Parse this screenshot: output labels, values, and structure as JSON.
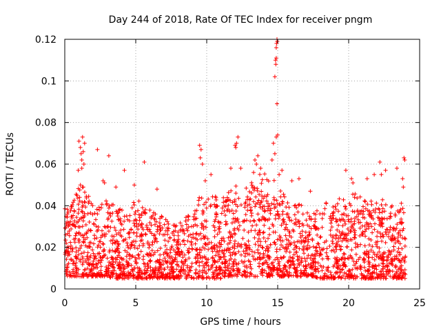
{
  "chart_data": {
    "type": "scatter",
    "title": "Day 244 of 2018, Rate Of TEC Index for receiver pngm",
    "xlabel": "GPS time / hours",
    "ylabel": "ROTI / TECUs",
    "xlim": [
      0,
      25
    ],
    "ylim": [
      0,
      0.12
    ],
    "x_ticks": [
      0,
      5,
      10,
      15,
      20,
      25
    ],
    "x_tick_labels": [
      "0",
      "5",
      "10",
      "15",
      "20",
      "25"
    ],
    "y_ticks": [
      0,
      0.02,
      0.04,
      0.06,
      0.08,
      0.1,
      0.12
    ],
    "y_tick_labels": [
      "0",
      "0.02",
      "0.04",
      "0.06",
      "0.08",
      "0.1",
      "0.12"
    ],
    "grid": true,
    "marker": "+",
    "series_color": "#ff0000",
    "series": [
      {
        "name": "pngm",
        "envelope": [
          [
            0.0,
            0.006,
            0.045
          ],
          [
            0.5,
            0.006,
            0.04
          ],
          [
            1.0,
            0.006,
            0.05
          ],
          [
            1.5,
            0.006,
            0.048
          ],
          [
            2.0,
            0.006,
            0.04
          ],
          [
            2.5,
            0.006,
            0.042
          ],
          [
            3.0,
            0.006,
            0.045
          ],
          [
            3.5,
            0.005,
            0.04
          ],
          [
            4.0,
            0.005,
            0.038
          ],
          [
            4.5,
            0.005,
            0.036
          ],
          [
            5.0,
            0.005,
            0.045
          ],
          [
            5.5,
            0.005,
            0.04
          ],
          [
            6.0,
            0.005,
            0.038
          ],
          [
            6.5,
            0.005,
            0.036
          ],
          [
            7.0,
            0.005,
            0.035
          ],
          [
            7.5,
            0.005,
            0.032
          ],
          [
            8.0,
            0.005,
            0.032
          ],
          [
            8.5,
            0.005,
            0.035
          ],
          [
            9.0,
            0.005,
            0.038
          ],
          [
            9.5,
            0.005,
            0.045
          ],
          [
            10.0,
            0.005,
            0.045
          ],
          [
            10.5,
            0.005,
            0.046
          ],
          [
            11.0,
            0.005,
            0.044
          ],
          [
            11.5,
            0.006,
            0.046
          ],
          [
            12.0,
            0.006,
            0.05
          ],
          [
            12.5,
            0.006,
            0.052
          ],
          [
            13.0,
            0.006,
            0.05
          ],
          [
            13.5,
            0.006,
            0.055
          ],
          [
            14.0,
            0.006,
            0.056
          ],
          [
            14.5,
            0.006,
            0.055
          ],
          [
            15.0,
            0.006,
            0.05
          ],
          [
            15.5,
            0.006,
            0.045
          ],
          [
            16.0,
            0.006,
            0.04
          ],
          [
            16.5,
            0.006,
            0.042
          ],
          [
            17.0,
            0.006,
            0.038
          ],
          [
            17.5,
            0.006,
            0.036
          ],
          [
            18.0,
            0.005,
            0.04
          ],
          [
            18.5,
            0.005,
            0.042
          ],
          [
            19.0,
            0.005,
            0.042
          ],
          [
            19.5,
            0.005,
            0.044
          ],
          [
            20.0,
            0.005,
            0.045
          ],
          [
            20.5,
            0.005,
            0.046
          ],
          [
            21.0,
            0.005,
            0.045
          ],
          [
            21.5,
            0.005,
            0.042
          ],
          [
            22.0,
            0.005,
            0.044
          ],
          [
            22.5,
            0.005,
            0.043
          ],
          [
            23.0,
            0.005,
            0.04
          ],
          [
            23.5,
            0.005,
            0.04
          ],
          [
            24.0,
            0.005,
            0.044
          ]
        ],
        "outliers": [
          [
            1.0,
            0.071
          ],
          [
            1.1,
            0.068
          ],
          [
            1.15,
            0.065
          ],
          [
            1.2,
            0.062
          ],
          [
            1.25,
            0.073
          ],
          [
            1.3,
            0.066
          ],
          [
            1.2,
            0.058
          ],
          [
            1.35,
            0.06
          ],
          [
            1.1,
            0.05
          ],
          [
            1.3,
            0.049
          ],
          [
            1.4,
            0.07
          ],
          [
            0.95,
            0.057
          ],
          [
            2.3,
            0.067
          ],
          [
            2.7,
            0.052
          ],
          [
            2.8,
            0.051
          ],
          [
            3.1,
            0.064
          ],
          [
            3.6,
            0.049
          ],
          [
            4.2,
            0.057
          ],
          [
            4.9,
            0.05
          ],
          [
            5.6,
            0.061
          ],
          [
            6.5,
            0.048
          ],
          [
            9.5,
            0.069
          ],
          [
            9.6,
            0.067
          ],
          [
            9.55,
            0.063
          ],
          [
            9.7,
            0.06
          ],
          [
            9.9,
            0.052
          ],
          [
            10.3,
            0.055
          ],
          [
            11.7,
            0.058
          ],
          [
            12.0,
            0.069
          ],
          [
            12.1,
            0.07
          ],
          [
            12.2,
            0.073
          ],
          [
            12.05,
            0.068
          ],
          [
            12.4,
            0.058
          ],
          [
            13.3,
            0.056
          ],
          [
            13.5,
            0.06
          ],
          [
            13.6,
            0.064
          ],
          [
            13.4,
            0.062
          ],
          [
            13.8,
            0.058
          ],
          [
            14.6,
            0.062
          ],
          [
            14.7,
            0.07
          ],
          [
            14.8,
            0.065
          ],
          [
            14.9,
            0.073
          ],
          [
            15.0,
            0.074
          ],
          [
            15.1,
            0.055
          ],
          [
            14.8,
            0.102
          ],
          [
            14.85,
            0.11
          ],
          [
            14.9,
            0.111
          ],
          [
            14.87,
            0.108
          ],
          [
            14.95,
            0.089
          ],
          [
            14.9,
            0.116
          ],
          [
            14.92,
            0.118
          ],
          [
            14.95,
            0.12
          ],
          [
            14.97,
            0.119
          ],
          [
            15.3,
            0.057
          ],
          [
            16.0,
            0.052
          ],
          [
            16.5,
            0.053
          ],
          [
            17.3,
            0.047
          ],
          [
            19.8,
            0.057
          ],
          [
            20.2,
            0.053
          ],
          [
            20.3,
            0.051
          ],
          [
            21.3,
            0.053
          ],
          [
            21.8,
            0.055
          ],
          [
            22.2,
            0.061
          ],
          [
            22.3,
            0.055
          ],
          [
            22.6,
            0.057
          ],
          [
            23.4,
            0.058
          ],
          [
            23.9,
            0.063
          ],
          [
            23.95,
            0.062
          ],
          [
            23.8,
            0.053
          ],
          [
            23.85,
            0.049
          ]
        ]
      }
    ]
  }
}
